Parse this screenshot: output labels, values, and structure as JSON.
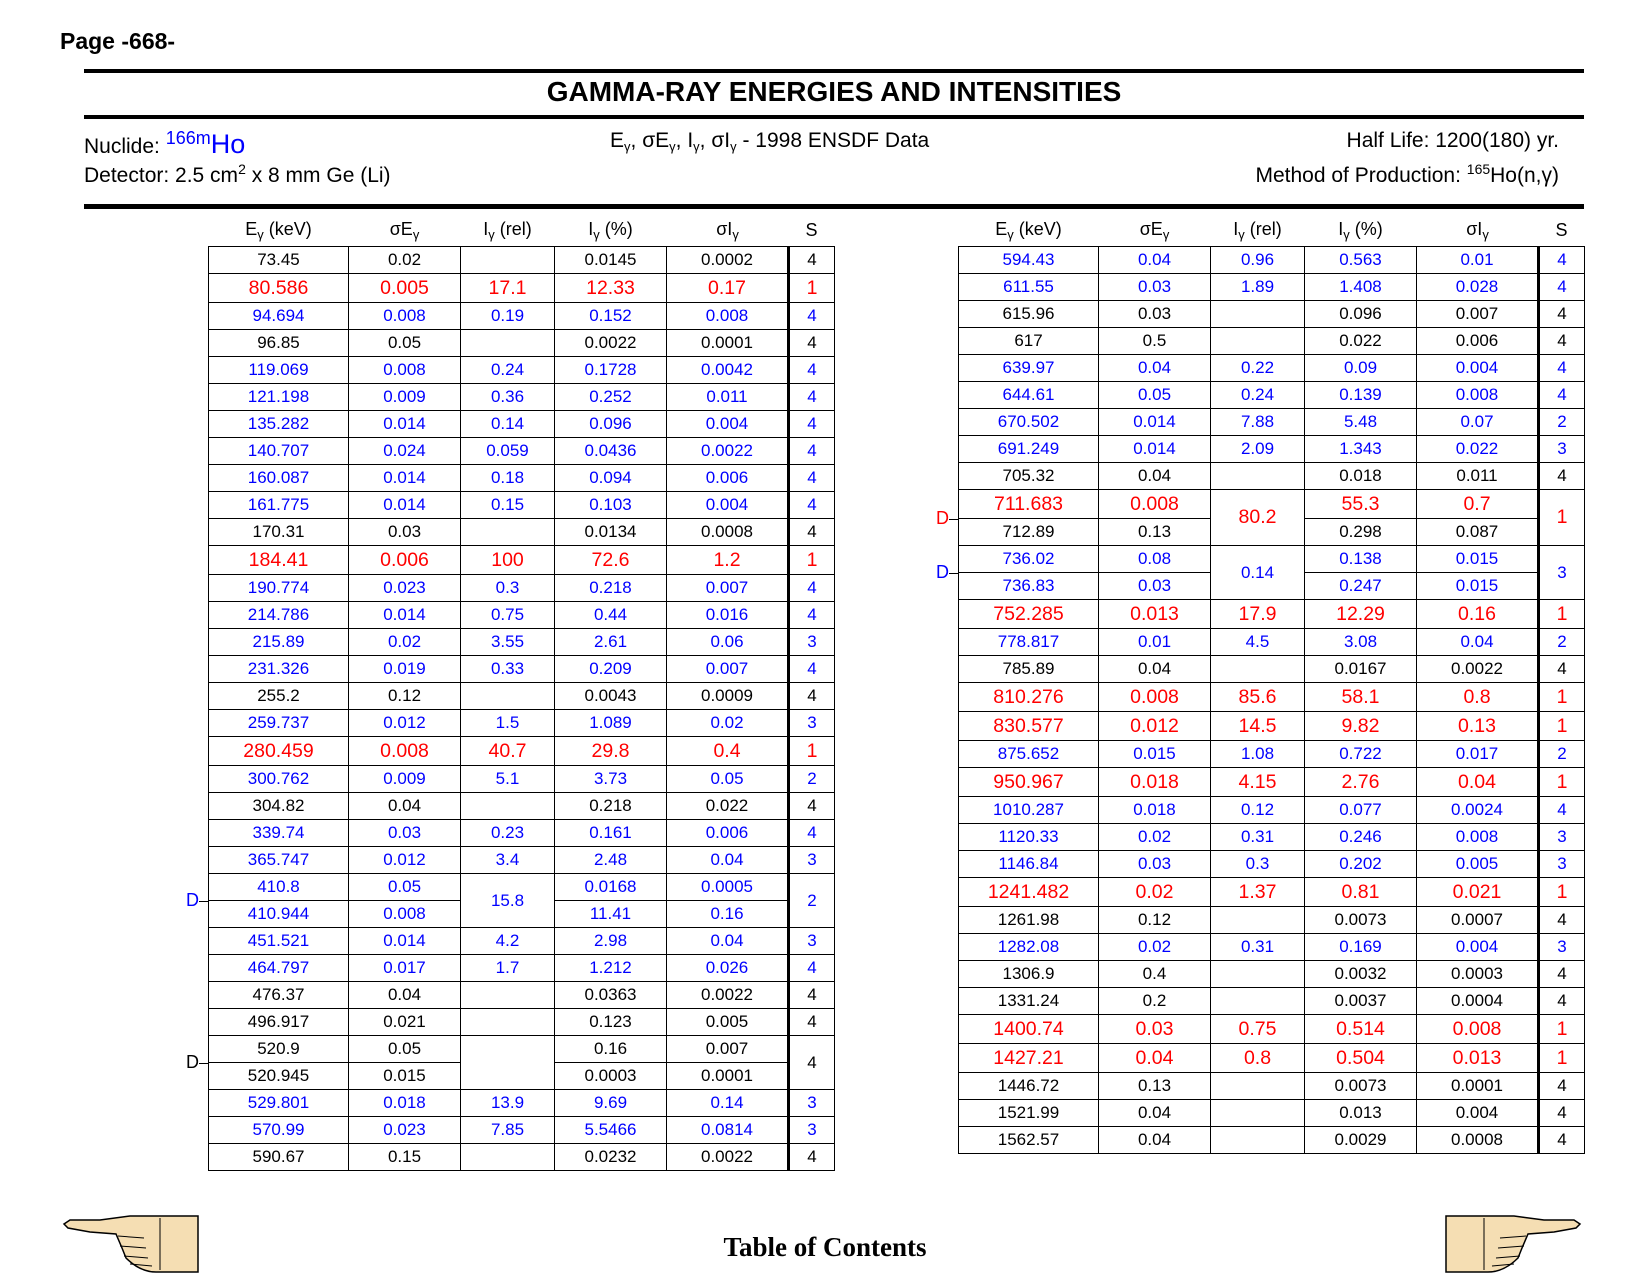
{
  "page_number": "Page -668-",
  "title": "GAMMA-RAY ENERGIES AND INTENSITIES",
  "nuclide": {
    "label": "Nuclide:",
    "mass": "166m",
    "symbol": "Ho"
  },
  "detector": {
    "label": "Detector: 2.5 cm",
    "exp": "2",
    "rest": " x 8 mm Ge (Li)"
  },
  "data_source": {
    "suffix": " - 1998 ENSDF Data"
  },
  "half_life": "Half Life: 1200(180) yr.",
  "production": {
    "label": "Method of Production: ",
    "mass": "165",
    "rest": "Ho(n,γ)"
  },
  "columns": {
    "energy": "E",
    "energy_unit": " (keV)",
    "sigma_energy": "σE",
    "intensity_rel": "I",
    "rel_unit": " (rel)",
    "intensity_pct": "I",
    "pct_unit": " (%)",
    "sigma_intensity": "σI",
    "gamma": "γ",
    "s": "S"
  },
  "color_key": {
    "blue": "#0000ff",
    "red": "#ff0000",
    "black": "#000000"
  },
  "doublet_marker": "D",
  "left_table": [
    {
      "e": "73.45",
      "se": "0.02",
      "ir": "",
      "ip": "0.0145",
      "si": "0.0002",
      "s": "4",
      "c": "black"
    },
    {
      "e": "80.586",
      "se": "0.005",
      "ir": "17.1",
      "ip": "12.33",
      "si": "0.17",
      "s": "1",
      "c": "red"
    },
    {
      "e": "94.694",
      "se": "0.008",
      "ir": "0.19",
      "ip": "0.152",
      "si": "0.008",
      "s": "4",
      "c": "blue"
    },
    {
      "e": "96.85",
      "se": "0.05",
      "ir": "",
      "ip": "0.0022",
      "si": "0.0001",
      "s": "4",
      "c": "black"
    },
    {
      "e": "119.069",
      "se": "0.008",
      "ir": "0.24",
      "ip": "0.1728",
      "si": "0.0042",
      "s": "4",
      "c": "blue"
    },
    {
      "e": "121.198",
      "se": "0.009",
      "ir": "0.36",
      "ip": "0.252",
      "si": "0.011",
      "s": "4",
      "c": "blue"
    },
    {
      "e": "135.282",
      "se": "0.014",
      "ir": "0.14",
      "ip": "0.096",
      "si": "0.004",
      "s": "4",
      "c": "blue"
    },
    {
      "e": "140.707",
      "se": "0.024",
      "ir": "0.059",
      "ip": "0.0436",
      "si": "0.0022",
      "s": "4",
      "c": "blue"
    },
    {
      "e": "160.087",
      "se": "0.014",
      "ir": "0.18",
      "ip": "0.094",
      "si": "0.006",
      "s": "4",
      "c": "blue"
    },
    {
      "e": "161.775",
      "se": "0.014",
      "ir": "0.15",
      "ip": "0.103",
      "si": "0.004",
      "s": "4",
      "c": "blue"
    },
    {
      "e": "170.31",
      "se": "0.03",
      "ir": "",
      "ip": "0.0134",
      "si": "0.0008",
      "s": "4",
      "c": "black"
    },
    {
      "e": "184.41",
      "se": "0.006",
      "ir": "100",
      "ip": "72.6",
      "si": "1.2",
      "s": "1",
      "c": "red"
    },
    {
      "e": "190.774",
      "se": "0.023",
      "ir": "0.3",
      "ip": "0.218",
      "si": "0.007",
      "s": "4",
      "c": "blue"
    },
    {
      "e": "214.786",
      "se": "0.014",
      "ir": "0.75",
      "ip": "0.44",
      "si": "0.016",
      "s": "4",
      "c": "blue"
    },
    {
      "e": "215.89",
      "se": "0.02",
      "ir": "3.55",
      "ip": "2.61",
      "si": "0.06",
      "s": "3",
      "c": "blue"
    },
    {
      "e": "231.326",
      "se": "0.019",
      "ir": "0.33",
      "ip": "0.209",
      "si": "0.007",
      "s": "4",
      "c": "blue"
    },
    {
      "e": "255.2",
      "se": "0.12",
      "ir": "",
      "ip": "0.0043",
      "si": "0.0009",
      "s": "4",
      "c": "black"
    },
    {
      "e": "259.737",
      "se": "0.012",
      "ir": "1.5",
      "ip": "1.089",
      "si": "0.02",
      "s": "3",
      "c": "blue"
    },
    {
      "e": "280.459",
      "se": "0.008",
      "ir": "40.7",
      "ip": "29.8",
      "si": "0.4",
      "s": "1",
      "c": "red"
    },
    {
      "e": "300.762",
      "se": "0.009",
      "ir": "5.1",
      "ip": "3.73",
      "si": "0.05",
      "s": "2",
      "c": "blue"
    },
    {
      "e": "304.82",
      "se": "0.04",
      "ir": "",
      "ip": "0.218",
      "si": "0.022",
      "s": "4",
      "c": "black"
    },
    {
      "e": "339.74",
      "se": "0.03",
      "ir": "0.23",
      "ip": "0.161",
      "si": "0.006",
      "s": "4",
      "c": "blue"
    },
    {
      "e": "365.747",
      "se": "0.012",
      "ir": "3.4",
      "ip": "2.48",
      "si": "0.04",
      "s": "3",
      "c": "blue"
    },
    {
      "e": "410.8",
      "se": "0.05",
      "ir": "15.8",
      "ip": "0.0168",
      "si": "0.0005",
      "s": "2",
      "c": "blue",
      "span": 2
    },
    {
      "e": "410.944",
      "se": "0.008",
      "ip": "11.41",
      "si": "0.16",
      "c": "blue"
    },
    {
      "e": "451.521",
      "se": "0.014",
      "ir": "4.2",
      "ip": "2.98",
      "si": "0.04",
      "s": "3",
      "c": "blue"
    },
    {
      "e": "464.797",
      "se": "0.017",
      "ir": "1.7",
      "ip": "1.212",
      "si": "0.026",
      "s": "4",
      "c": "blue"
    },
    {
      "e": "476.37",
      "se": "0.04",
      "ir": "",
      "ip": "0.0363",
      "si": "0.0022",
      "s": "4",
      "c": "black"
    },
    {
      "e": "496.917",
      "se": "0.021",
      "ir": "",
      "ip": "0.123",
      "si": "0.005",
      "s": "4",
      "c": "black"
    },
    {
      "e": "520.9",
      "se": "0.05",
      "ir": "",
      "ip": "0.16",
      "si": "0.007",
      "s": "4",
      "c": "black",
      "span": 2
    },
    {
      "e": "520.945",
      "se": "0.015",
      "ip": "0.0003",
      "si": "0.0001",
      "c": "black"
    },
    {
      "e": "529.801",
      "se": "0.018",
      "ir": "13.9",
      "ip": "9.69",
      "si": "0.14",
      "s": "3",
      "c": "blue"
    },
    {
      "e": "570.99",
      "se": "0.023",
      "ir": "7.85",
      "ip": "5.5466",
      "si": "0.0814",
      "s": "3",
      "c": "blue"
    },
    {
      "e": "590.67",
      "se": "0.15",
      "ir": "",
      "ip": "0.0232",
      "si": "0.0022",
      "s": "4",
      "c": "black"
    }
  ],
  "right_table": [
    {
      "e": "594.43",
      "se": "0.04",
      "ir": "0.96",
      "ip": "0.563",
      "si": "0.01",
      "s": "4",
      "c": "blue"
    },
    {
      "e": "611.55",
      "se": "0.03",
      "ir": "1.89",
      "ip": "1.408",
      "si": "0.028",
      "s": "4",
      "c": "blue"
    },
    {
      "e": "615.96",
      "se": "0.03",
      "ir": "",
      "ip": "0.096",
      "si": "0.007",
      "s": "4",
      "c": "black"
    },
    {
      "e": "617",
      "se": "0.5",
      "ir": "",
      "ip": "0.022",
      "si": "0.006",
      "s": "4",
      "c": "black"
    },
    {
      "e": "639.97",
      "se": "0.04",
      "ir": "0.22",
      "ip": "0.09",
      "si": "0.004",
      "s": "4",
      "c": "blue"
    },
    {
      "e": "644.61",
      "se": "0.05",
      "ir": "0.24",
      "ip": "0.139",
      "si": "0.008",
      "s": "4",
      "c": "blue"
    },
    {
      "e": "670.502",
      "se": "0.014",
      "ir": "7.88",
      "ip": "5.48",
      "si": "0.07",
      "s": "2",
      "c": "blue"
    },
    {
      "e": "691.249",
      "se": "0.014",
      "ir": "2.09",
      "ip": "1.343",
      "si": "0.022",
      "s": "3",
      "c": "blue"
    },
    {
      "e": "705.32",
      "se": "0.04",
      "ir": "",
      "ip": "0.018",
      "si": "0.011",
      "s": "4",
      "c": "black"
    },
    {
      "e": "711.683",
      "se": "0.008",
      "ir": "80.2",
      "ip": "55.3",
      "si": "0.7",
      "s": "1",
      "c": "red",
      "span": 2
    },
    {
      "e": "712.89",
      "se": "0.13",
      "ip": "0.298",
      "si": "0.087",
      "c": "black"
    },
    {
      "e": "736.02",
      "se": "0.08",
      "ir": "0.14",
      "ip": "0.138",
      "si": "0.015",
      "s": "3",
      "c": "blue",
      "span": 2
    },
    {
      "e": "736.83",
      "se": "0.03",
      "ip": "0.247",
      "si": "0.015",
      "c": "blue"
    },
    {
      "e": "752.285",
      "se": "0.013",
      "ir": "17.9",
      "ip": "12.29",
      "si": "0.16",
      "s": "1",
      "c": "red"
    },
    {
      "e": "778.817",
      "se": "0.01",
      "ir": "4.5",
      "ip": "3.08",
      "si": "0.04",
      "s": "2",
      "c": "blue"
    },
    {
      "e": "785.89",
      "se": "0.04",
      "ir": "",
      "ip": "0.0167",
      "si": "0.0022",
      "s": "4",
      "c": "black"
    },
    {
      "e": "810.276",
      "se": "0.008",
      "ir": "85.6",
      "ip": "58.1",
      "si": "0.8",
      "s": "1",
      "c": "red"
    },
    {
      "e": "830.577",
      "se": "0.012",
      "ir": "14.5",
      "ip": "9.82",
      "si": "0.13",
      "s": "1",
      "c": "red"
    },
    {
      "e": "875.652",
      "se": "0.015",
      "ir": "1.08",
      "ip": "0.722",
      "si": "0.017",
      "s": "2",
      "c": "blue"
    },
    {
      "e": "950.967",
      "se": "0.018",
      "ir": "4.15",
      "ip": "2.76",
      "si": "0.04",
      "s": "1",
      "c": "red"
    },
    {
      "e": "1010.287",
      "se": "0.018",
      "ir": "0.12",
      "ip": "0.077",
      "si": "0.0024",
      "s": "4",
      "c": "blue"
    },
    {
      "e": "1120.33",
      "se": "0.02",
      "ir": "0.31",
      "ip": "0.246",
      "si": "0.008",
      "s": "3",
      "c": "blue"
    },
    {
      "e": "1146.84",
      "se": "0.03",
      "ir": "0.3",
      "ip": "0.202",
      "si": "0.005",
      "s": "3",
      "c": "blue"
    },
    {
      "e": "1241.482",
      "se": "0.02",
      "ir": "1.37",
      "ip": "0.81",
      "si": "0.021",
      "s": "1",
      "c": "red"
    },
    {
      "e": "1261.98",
      "se": "0.12",
      "ir": "",
      "ip": "0.0073",
      "si": "0.0007",
      "s": "4",
      "c": "black"
    },
    {
      "e": "1282.08",
      "se": "0.02",
      "ir": "0.31",
      "ip": "0.169",
      "si": "0.004",
      "s": "3",
      "c": "blue"
    },
    {
      "e": "1306.9",
      "se": "0.4",
      "ir": "",
      "ip": "0.0032",
      "si": "0.0003",
      "s": "4",
      "c": "black"
    },
    {
      "e": "1331.24",
      "se": "0.2",
      "ir": "",
      "ip": "0.0037",
      "si": "0.0004",
      "s": "4",
      "c": "black"
    },
    {
      "e": "1400.74",
      "se": "0.03",
      "ir": "0.75",
      "ip": "0.514",
      "si": "0.008",
      "s": "1",
      "c": "red"
    },
    {
      "e": "1427.21",
      "se": "0.04",
      "ir": "0.8",
      "ip": "0.504",
      "si": "0.013",
      "s": "1",
      "c": "red"
    },
    {
      "e": "1446.72",
      "se": "0.13",
      "ir": "",
      "ip": "0.0073",
      "si": "0.0001",
      "s": "4",
      "c": "black"
    },
    {
      "e": "1521.99",
      "se": "0.04",
      "ir": "",
      "ip": "0.013",
      "si": "0.004",
      "s": "4",
      "c": "black"
    },
    {
      "e": "1562.57",
      "se": "0.04",
      "ir": "",
      "ip": "0.0029",
      "si": "0.0008",
      "s": "4",
      "c": "black"
    }
  ],
  "footer": {
    "toc_link": "Table of Contents",
    "prev_icon": "pointing-hand-left",
    "next_icon": "pointing-hand-right"
  }
}
